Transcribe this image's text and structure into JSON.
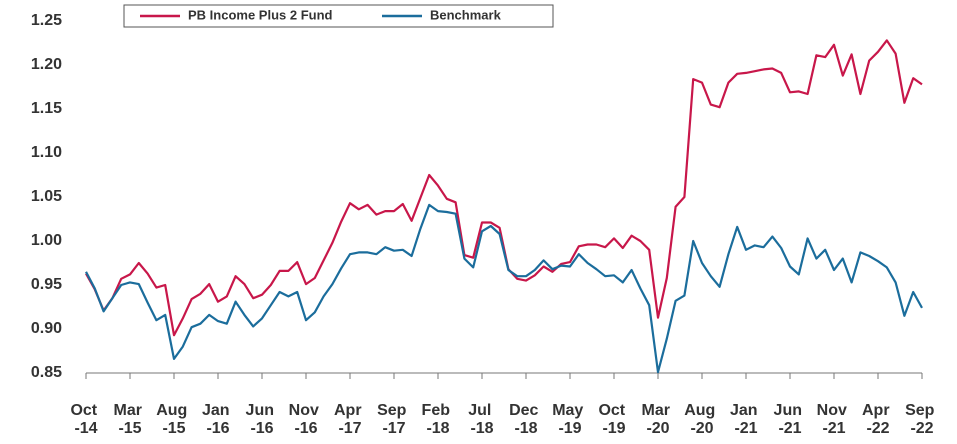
{
  "chart_data": {
    "type": "line",
    "categories": [
      "Oct -14",
      null,
      null,
      null,
      null,
      "Mar -15",
      null,
      null,
      null,
      null,
      "Aug -15",
      null,
      null,
      null,
      null,
      "Jan -16",
      null,
      null,
      null,
      null,
      "Jun -16",
      null,
      null,
      null,
      null,
      "Nov -16",
      null,
      null,
      null,
      null,
      "Apr -17",
      null,
      null,
      null,
      null,
      "Sep -17",
      null,
      null,
      null,
      null,
      "Feb -18",
      null,
      null,
      null,
      null,
      "Jul -18",
      null,
      null,
      null,
      null,
      "Dec -18",
      null,
      null,
      null,
      null,
      "May -19",
      null,
      null,
      null,
      null,
      "Oct -19",
      null,
      null,
      null,
      null,
      "Mar -20",
      null,
      null,
      null,
      null,
      "Aug -20",
      null,
      null,
      null,
      null,
      "Jan -21",
      null,
      null,
      null,
      null,
      "Jun -21",
      null,
      null,
      null,
      null,
      "Nov -21",
      null,
      null,
      null,
      null,
      "Apr -22",
      null,
      null,
      null,
      null,
      "Sep -22"
    ],
    "series": [
      {
        "name": "PB Income Plus 2 Fund",
        "color": "#c8174a",
        "values": [
          0.963,
          0.945,
          0.921,
          0.935,
          0.957,
          0.962,
          0.975,
          0.963,
          0.947,
          0.95,
          0.893,
          0.912,
          0.934,
          0.94,
          0.951,
          0.931,
          0.937,
          0.96,
          0.951,
          0.935,
          0.939,
          0.95,
          0.966,
          0.966,
          0.976,
          0.951,
          0.958,
          0.978,
          0.998,
          1.022,
          1.043,
          1.036,
          1.041,
          1.03,
          1.034,
          1.034,
          1.042,
          1.023,
          1.049,
          1.075,
          1.063,
          1.048,
          1.044,
          0.984,
          0.981,
          1.021,
          1.021,
          1.015,
          0.968,
          0.957,
          0.955,
          0.961,
          0.971,
          0.965,
          0.974,
          0.976,
          0.994,
          0.996,
          0.996,
          0.993,
          1.003,
          0.992,
          1.006,
          1.0,
          0.99,
          0.913,
          0.958,
          1.039,
          1.05,
          1.184,
          1.18,
          1.155,
          1.152,
          1.18,
          1.19,
          1.191,
          1.193,
          1.195,
          1.196,
          1.191,
          1.169,
          1.17,
          1.167,
          1.211,
          1.209,
          1.223,
          1.188,
          1.212,
          1.167,
          1.205,
          1.215,
          1.228,
          1.213,
          1.157,
          1.185,
          1.178
        ]
      },
      {
        "name": "Benchmark",
        "color": "#1b6d9c",
        "values": [
          0.965,
          0.946,
          0.92,
          0.935,
          0.95,
          0.953,
          0.951,
          0.93,
          0.91,
          0.916,
          0.866,
          0.88,
          0.902,
          0.906,
          0.916,
          0.909,
          0.906,
          0.931,
          0.916,
          0.903,
          0.912,
          0.927,
          0.942,
          0.937,
          0.942,
          0.91,
          0.919,
          0.937,
          0.951,
          0.969,
          0.985,
          0.987,
          0.987,
          0.985,
          0.993,
          0.989,
          0.99,
          0.983,
          1.014,
          1.041,
          1.034,
          1.033,
          1.031,
          0.98,
          0.97,
          1.011,
          1.017,
          1.008,
          0.967,
          0.96,
          0.96,
          0.967,
          0.978,
          0.968,
          0.972,
          0.971,
          0.985,
          0.975,
          0.968,
          0.96,
          0.961,
          0.953,
          0.967,
          0.946,
          0.927,
          0.851,
          0.889,
          0.932,
          0.938,
          1.0,
          0.975,
          0.96,
          0.948,
          0.985,
          1.016,
          0.99,
          0.995,
          0.993,
          1.005,
          0.992,
          0.971,
          0.962,
          1.003,
          0.98,
          0.99,
          0.967,
          0.98,
          0.953,
          0.987,
          0.983,
          0.977,
          0.97,
          0.953,
          0.915,
          0.942,
          0.924
        ]
      }
    ],
    "ylim": [
      0.85,
      1.25
    ],
    "yticks": [
      0.85,
      {
        "value": 0.9,
        "label": "0.90"
      },
      0.95,
      {
        "value": 1.0,
        "label": "1.00"
      },
      1.05,
      {
        "value": 1.1,
        "label": "1.10"
      },
      1.15,
      {
        "value": 1.2,
        "label": "1.20"
      },
      1.25
    ],
    "grid": false
  }
}
